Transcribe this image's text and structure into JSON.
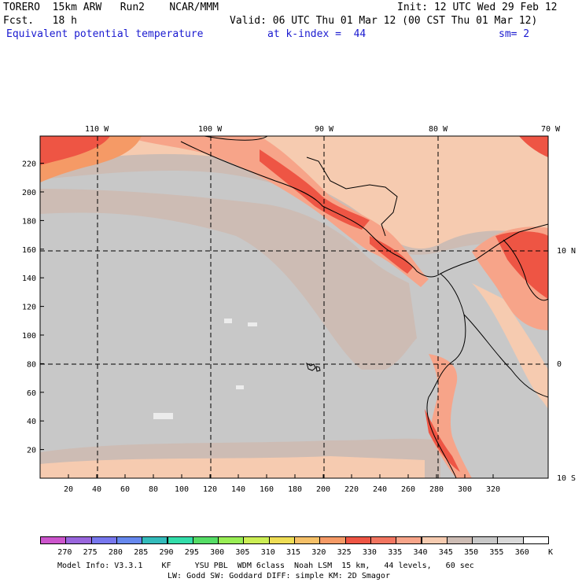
{
  "header": {
    "model": "TORERO  15km ARW   Run2    NCAR/MMM",
    "init": "Init: 12 UTC Wed 29 Feb 12",
    "fcst": "Fcst.   18 h",
    "valid": "Valid: 06 UTC Thu 01 Mar 12 (00 CST Thu 01 Mar 12)",
    "field": "Equivalent potential temperature",
    "kindex": "at k-index =  44",
    "sm": "sm= 2"
  },
  "map": {
    "top_lon_labels": [
      "110 W",
      "100 W",
      "90 W",
      "80 W",
      "70 W"
    ],
    "right_lat_labels": [
      "10 N",
      "0",
      "10 S"
    ],
    "x_ticks": [
      "20",
      "40",
      "60",
      "80",
      "100",
      "120",
      "140",
      "160",
      "180",
      "200",
      "220",
      "240",
      "260",
      "280",
      "300",
      "320"
    ],
    "y_ticks": [
      "20",
      "40",
      "60",
      "80",
      "100",
      "120",
      "140",
      "160",
      "180",
      "200",
      "220"
    ]
  },
  "colorbar": {
    "unit": "K",
    "labels": [
      "270",
      "275",
      "280",
      "285",
      "290",
      "295",
      "300",
      "305",
      "310",
      "315",
      "320",
      "325",
      "330",
      "335",
      "340",
      "345",
      "350",
      "355",
      "360"
    ],
    "colors": [
      "#cc55cc",
      "#9966dd",
      "#7777ee",
      "#6688ee",
      "#33bbbb",
      "#33ddaa",
      "#55dd66",
      "#99ee55",
      "#ccee55",
      "#eedd55",
      "#f5c068",
      "#f59a66",
      "#ee5544",
      "#f27560",
      "#f7a489",
      "#f6cbb0",
      "#cdbcb4",
      "#c8c8c8",
      "#d9d9d9",
      "#ffffff"
    ]
  },
  "footer": {
    "line1": "Model Info: V3.3.1    KF     YSU PBL  WDM 6class  Noah LSM  15 km,   44 levels,   60 sec",
    "line2": "LW: Godd SW: Goddard DIFF: simple KM: 2D Smagor"
  }
}
